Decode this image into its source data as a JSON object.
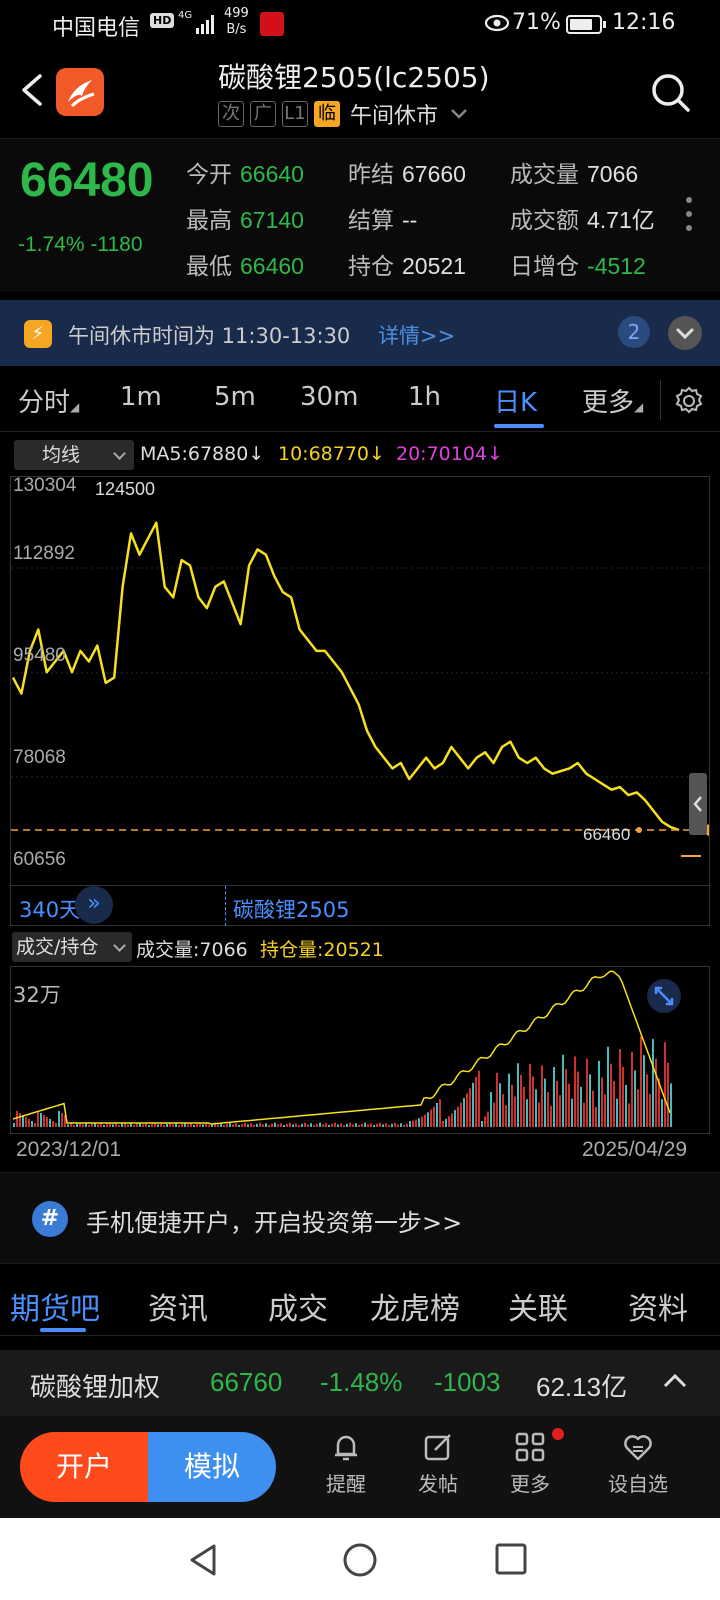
{
  "status_bar": {
    "carrier": "中国电信",
    "hd": "HD",
    "network": "4G",
    "speed_value": "499",
    "speed_unit": "B/s",
    "battery": "71%",
    "time": "12:16"
  },
  "header": {
    "title": "碳酸锂2505(lc2505)",
    "tags": [
      "次",
      "广",
      "L1",
      "临"
    ],
    "market_status": "午间休市"
  },
  "quote": {
    "last_price": "66480",
    "change_pct": "-1.74%",
    "change_abs": "-1180",
    "fields": [
      {
        "label": "今开",
        "value": "66640",
        "color": "green"
      },
      {
        "label": "昨结",
        "value": "67660",
        "color": "white"
      },
      {
        "label": "成交量",
        "value": "7066",
        "color": "white"
      },
      {
        "label": "最高",
        "value": "67140",
        "color": "green"
      },
      {
        "label": "结算",
        "value": "--",
        "color": "white"
      },
      {
        "label": "成交额",
        "value": "4.71亿",
        "color": "white"
      },
      {
        "label": "最低",
        "value": "66460",
        "color": "green"
      },
      {
        "label": "持仓",
        "value": "20521",
        "color": "white"
      },
      {
        "label": "日增仓",
        "value": "-4512",
        "color": "green"
      }
    ]
  },
  "notice": {
    "text": "午间休市时间为 11:30-13:30",
    "link": "详情>>",
    "count": "2"
  },
  "period_tabs": [
    "分时",
    "1m",
    "5m",
    "30m",
    "1h",
    "日K",
    "更多"
  ],
  "active_period": "日K",
  "ma_row": {
    "select": "均线",
    "ma5": "MA5:67880↓",
    "ma10": "10:68770↓",
    "ma20": "20:70104↓"
  },
  "chart_axis": {
    "y_labels": [
      "130304",
      "112892",
      "95480",
      "78068",
      "60656"
    ],
    "high_label": "124500",
    "last_label": "66460"
  },
  "range_row": {
    "days": "340天",
    "name": "碳酸锂2505"
  },
  "vol_row": {
    "select": "成交/持仓",
    "volume": "成交量:7066",
    "open_interest": "持仓量:20521",
    "max_label": "32万"
  },
  "dates": {
    "start": "2023/12/01",
    "end": "2025/04/29"
  },
  "promo": {
    "text": "手机便捷开户，开启投资第一步>>"
  },
  "sub_tabs": [
    "期货吧",
    "资讯",
    "成交",
    "龙虎榜",
    "关联",
    "资料"
  ],
  "weighted": {
    "name": "碳酸锂加权",
    "price": "66760",
    "pct": "-1.48%",
    "chg": "-1003",
    "amount": "62.13亿"
  },
  "bottom_bar": {
    "open_account": "开户",
    "simulate": "模拟",
    "items": [
      "提醒",
      "发帖",
      "更多",
      "设自选"
    ]
  },
  "colors": {
    "up": "#e03030",
    "down": "#2eb84a",
    "accent": "#4a8fff",
    "line": "#f5e020"
  },
  "chart_data": {
    "type": "line",
    "title": "",
    "ylim": [
      60656,
      130304
    ],
    "y_ticks": [
      130304,
      112892,
      95480,
      78068,
      60656
    ],
    "x_range": [
      "2023/12/01",
      "2025/04/29"
    ],
    "high": 124500,
    "last": 66460,
    "series": [
      {
        "name": "碳酸锂2505",
        "values": [
          95000,
          92000,
          100000,
          104000,
          96000,
          98000,
          100000,
          96000,
          100000,
          98000,
          101000,
          94000,
          95000,
          112000,
          122000,
          118000,
          121000,
          124000,
          112000,
          110000,
          117000,
          116000,
          110000,
          108000,
          112000,
          113000,
          109000,
          105000,
          116000,
          119000,
          118000,
          114000,
          111000,
          110000,
          104000,
          102000,
          100000,
          100000,
          98000,
          96000,
          93000,
          90000,
          85000,
          82000,
          80000,
          78000,
          79000,
          76000,
          78000,
          80000,
          78000,
          79000,
          82000,
          80000,
          78000,
          80000,
          81000,
          79000,
          82000,
          83000,
          80000,
          79000,
          80000,
          78000,
          77000,
          77500,
          78000,
          79000,
          77000,
          76000,
          75000,
          74000,
          74500,
          73000,
          73500,
          72000,
          70000,
          68000,
          67000,
          66460
        ]
      }
    ]
  }
}
